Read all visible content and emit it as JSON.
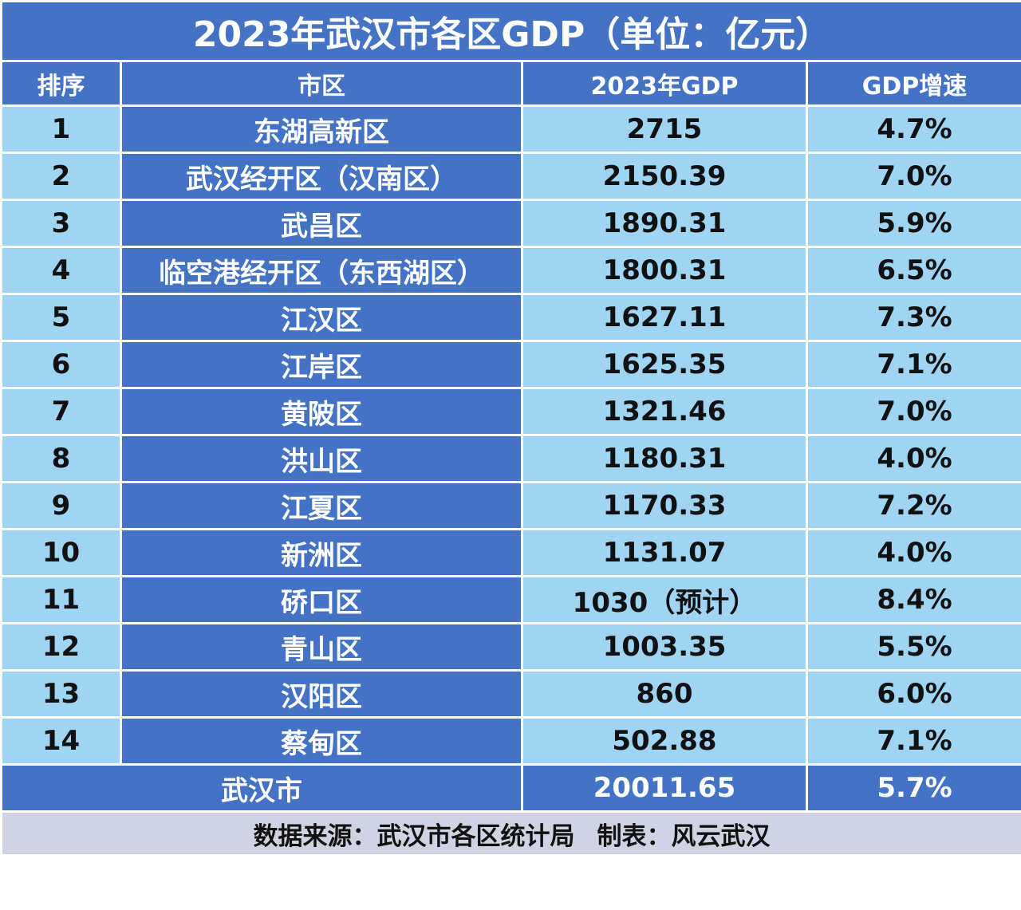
{
  "title": "2023年武汉市各区GDP（单位：亿元）",
  "headers": {
    "rank": "排序",
    "district": "市区",
    "gdp": "2023年GDP",
    "growth": "GDP增速"
  },
  "rows": [
    {
      "rank": "1",
      "district": "东湖高新区",
      "gdp": "2715",
      "growth": "4.7%"
    },
    {
      "rank": "2",
      "district": "武汉经开区（汉南区）",
      "gdp": "2150.39",
      "growth": "7.0%"
    },
    {
      "rank": "3",
      "district": "武昌区",
      "gdp": "1890.31",
      "growth": "5.9%"
    },
    {
      "rank": "4",
      "district": "临空港经开区（东西湖区）",
      "gdp": "1800.31",
      "growth": "6.5%"
    },
    {
      "rank": "5",
      "district": "江汉区",
      "gdp": "1627.11",
      "growth": "7.3%"
    },
    {
      "rank": "6",
      "district": "江岸区",
      "gdp": "1625.35",
      "growth": "7.1%"
    },
    {
      "rank": "7",
      "district": "黄陂区",
      "gdp": "1321.46",
      "growth": "7.0%"
    },
    {
      "rank": "8",
      "district": "洪山区",
      "gdp": "1180.31",
      "growth": "4.0%"
    },
    {
      "rank": "9",
      "district": "江夏区",
      "gdp": "1170.33",
      "growth": "7.2%"
    },
    {
      "rank": "10",
      "district": "新洲区",
      "gdp": "1131.07",
      "growth": "4.0%"
    },
    {
      "rank": "11",
      "district": "硚口区",
      "gdp": "1030（预计）",
      "growth": "8.4%"
    },
    {
      "rank": "12",
      "district": "青山区",
      "gdp": "1003.35",
      "growth": "5.5%"
    },
    {
      "rank": "13",
      "district": "汉阳区",
      "gdp": "860",
      "growth": "6.0%"
    },
    {
      "rank": "14",
      "district": "蔡甸区",
      "gdp": "502.88",
      "growth": "7.1%"
    }
  ],
  "total": {
    "label": "武汉市",
    "gdp": "20011.65",
    "growth": "5.7%"
  },
  "footer": {
    "source": "数据来源：武汉市各区统计局",
    "maker": "制表：风云武汉"
  },
  "colors": {
    "header_blue": "#4472c4",
    "cell_light_blue": "#9fd5f3",
    "footer_gray": "#d0d3e3"
  }
}
